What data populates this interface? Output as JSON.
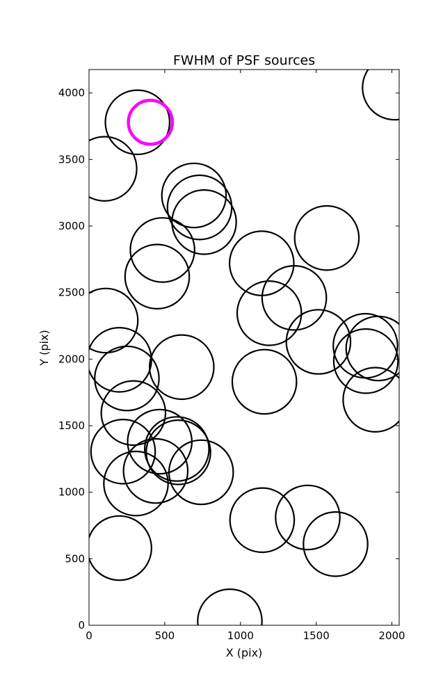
{
  "chart_data": {
    "type": "scatter",
    "title": "FWHM of PSF sources",
    "xlabel": "X (pix)",
    "ylabel": "Y (pix)",
    "xlim": [
      0,
      2048
    ],
    "ylim": [
      0,
      4176
    ],
    "xticks": [
      0,
      500,
      1000,
      1500,
      2000
    ],
    "yticks": [
      0,
      500,
      1000,
      1500,
      2000,
      2500,
      3000,
      3500,
      4000
    ],
    "grid": false,
    "legend": "none",
    "colors": {
      "source": "#000000",
      "highlight": "#ff00ff",
      "axes": "#000000",
      "background": "#ffffff"
    },
    "point_radius_pix": 212,
    "highlight_radius_pix": 145,
    "sources": [
      {
        "x": 2018,
        "y": 4040
      },
      {
        "x": 320,
        "y": 3780
      },
      {
        "x": 103,
        "y": 3430
      },
      {
        "x": 693,
        "y": 3230
      },
      {
        "x": 730,
        "y": 3140
      },
      {
        "x": 760,
        "y": 3030
      },
      {
        "x": 1570,
        "y": 2910
      },
      {
        "x": 485,
        "y": 2820
      },
      {
        "x": 1140,
        "y": 2720
      },
      {
        "x": 450,
        "y": 2620
      },
      {
        "x": 1355,
        "y": 2460
      },
      {
        "x": 110,
        "y": 2290
      },
      {
        "x": 1190,
        "y": 2345
      },
      {
        "x": 1515,
        "y": 2130
      },
      {
        "x": 1825,
        "y": 2100
      },
      {
        "x": 1910,
        "y": 2080
      },
      {
        "x": 200,
        "y": 1995
      },
      {
        "x": 1828,
        "y": 1985
      },
      {
        "x": 612,
        "y": 1940
      },
      {
        "x": 250,
        "y": 1855
      },
      {
        "x": 1158,
        "y": 1830
      },
      {
        "x": 1890,
        "y": 1695
      },
      {
        "x": 293,
        "y": 1595
      },
      {
        "x": 467,
        "y": 1380
      },
      {
        "x": 225,
        "y": 1305
      },
      {
        "x": 580,
        "y": 1325
      },
      {
        "x": 590,
        "y": 1300
      },
      {
        "x": 440,
        "y": 1160
      },
      {
        "x": 740,
        "y": 1150
      },
      {
        "x": 310,
        "y": 1065
      },
      {
        "x": 1143,
        "y": 790
      },
      {
        "x": 1444,
        "y": 810
      },
      {
        "x": 1628,
        "y": 610
      },
      {
        "x": 200,
        "y": 580
      },
      {
        "x": 930,
        "y": 30
      }
    ],
    "highlight": {
      "x": 405,
      "y": 3780
    }
  }
}
